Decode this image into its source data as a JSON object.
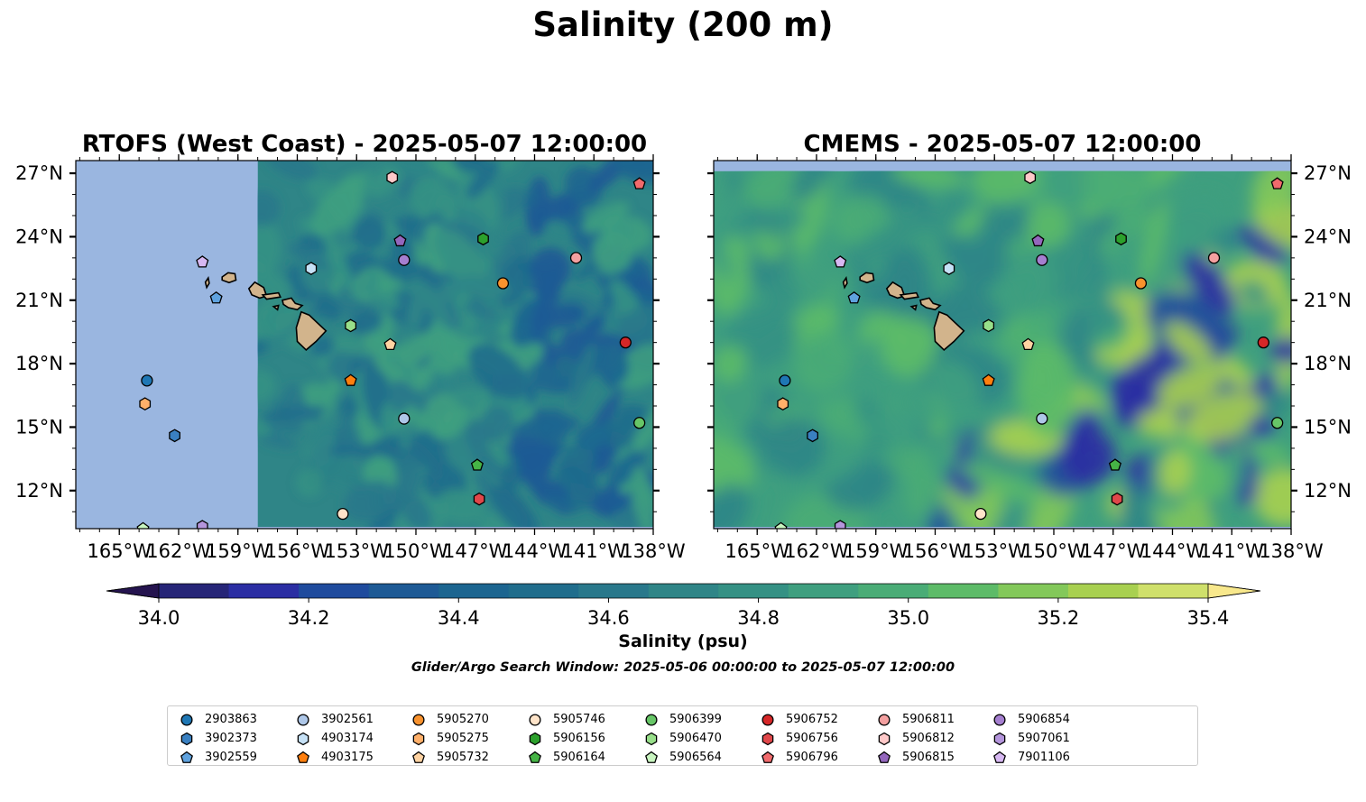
{
  "suptitle": "Salinity (200 m)",
  "colorbar": {
    "label": "Salinity (psu)",
    "ticks": [
      "34.0",
      "34.2",
      "34.4",
      "34.6",
      "34.8",
      "35.0",
      "35.2",
      "35.4"
    ],
    "levels": [
      34.0,
      34.1,
      34.2,
      34.3,
      34.4,
      34.5,
      34.6,
      34.7,
      34.8,
      34.9,
      35.0,
      35.1,
      35.2,
      35.3,
      35.4
    ],
    "colors": [
      "#262577",
      "#2b2ea3",
      "#1f4b9d",
      "#1e5a95",
      "#1c6590",
      "#206d8c",
      "#29788b",
      "#2f8587",
      "#359184",
      "#3f9f7f",
      "#4aac76",
      "#5dbb68",
      "#83c85a",
      "#a8d050",
      "#cfe06b"
    ],
    "under_color": "#25144f",
    "over_color": "#f8e88c",
    "extend": "both"
  },
  "search_window": "Glider/Argo Search Window: 2025-05-06 00:00:00 to 2025-05-07 12:00:00",
  "chart_data": [
    {
      "type": "map",
      "title": "RTOFS (West Coast) - 2025-05-07 12:00:00",
      "x_ticks": [
        "165°W",
        "162°W",
        "159°W",
        "156°W",
        "153°W",
        "150°W",
        "147°W",
        "144°W",
        "141°W",
        "138°W"
      ],
      "y_ticks": [
        "27°N",
        "24°N",
        "21°N",
        "18°N",
        "15°N",
        "12°N"
      ],
      "xlim": [
        -167.2,
        -138
      ],
      "ylim": [
        10.2,
        27.6
      ],
      "model_domain_west_edge": -158.0,
      "land_color": "#d2b48c",
      "ocean_no_data_color": "#9ab6e0",
      "field_colors": [
        "#2f8587",
        "#29788b",
        "#359184",
        "#206d8c",
        "#3f9f7f",
        "#1c6590",
        "#1e5a95",
        "#4aac76"
      ]
    },
    {
      "type": "map",
      "title": "CMEMS - 2025-05-07 12:00:00",
      "x_ticks": [
        "165°W",
        "162°W",
        "159°W",
        "156°W",
        "153°W",
        "150°W",
        "147°W",
        "144°W",
        "141°W",
        "138°W"
      ],
      "y_ticks": [
        "27°N",
        "24°N",
        "21°N",
        "18°N",
        "15°N",
        "12°N"
      ],
      "xlim": [
        -167.2,
        -138
      ],
      "ylim": [
        10.2,
        27.6
      ],
      "model_domain_north_edge": 27.1,
      "land_color": "#d2b48c",
      "ocean_no_data_color": "#9ab6e0",
      "field_colors": [
        "#3f9f7f",
        "#4aac76",
        "#359184",
        "#5dbb68",
        "#2f8587",
        "#206d8c",
        "#1e5a95",
        "#83c85a",
        "#1f4b9d",
        "#a8d050",
        "#2b2ea3"
      ]
    }
  ],
  "islands": [
    {
      "name": "Niihau-Kauai",
      "lon": -159.5,
      "lat": 22.05
    },
    {
      "name": "Oahu",
      "lon": -157.95,
      "lat": 21.45
    },
    {
      "name": "Molokai-Maui",
      "lon": -156.65,
      "lat": 20.9
    },
    {
      "name": "Hawaii",
      "lon": -155.5,
      "lat": 19.6
    }
  ],
  "floats": [
    {
      "id": "2903863",
      "marker": "circle",
      "color": "#1f77b4",
      "lon": -163.6,
      "lat": 17.2
    },
    {
      "id": "3902373",
      "marker": "hexagon",
      "color": "#3a80c1",
      "lon": -162.2,
      "lat": 14.6
    },
    {
      "id": "3902559",
      "marker": "pentagon",
      "color": "#5fa2de",
      "lon": -160.1,
      "lat": 21.1
    },
    {
      "id": "3902561",
      "marker": "circle",
      "color": "#aec7e8",
      "lon": -150.6,
      "lat": 15.4
    },
    {
      "id": "4903174",
      "marker": "hexagon",
      "color": "#c6e1f6",
      "lon": -155.3,
      "lat": 22.5
    },
    {
      "id": "4903175",
      "marker": "pentagon",
      "color": "#ff7f0e",
      "lon": -153.3,
      "lat": 17.2
    },
    {
      "id": "5905270",
      "marker": "circle",
      "color": "#f8922e",
      "lon": -145.6,
      "lat": 21.8
    },
    {
      "id": "5905275",
      "marker": "hexagon",
      "color": "#ffb06a",
      "lon": -163.7,
      "lat": 16.1
    },
    {
      "id": "5905732",
      "marker": "pentagon",
      "color": "#ffd3a2",
      "lon": -151.3,
      "lat": 18.9
    },
    {
      "id": "5905746",
      "marker": "circle",
      "color": "#ffe4c9",
      "lon": -153.7,
      "lat": 10.9
    },
    {
      "id": "5906156",
      "marker": "hexagon",
      "color": "#2ca02c",
      "lon": -146.6,
      "lat": 23.9
    },
    {
      "id": "5906164",
      "marker": "pentagon",
      "color": "#46b446",
      "lon": -146.9,
      "lat": 13.2
    },
    {
      "id": "5906399",
      "marker": "circle",
      "color": "#67c667",
      "lon": -138.7,
      "lat": 15.2
    },
    {
      "id": "5906470",
      "marker": "hexagon",
      "color": "#98df8a",
      "lon": -153.3,
      "lat": 19.8
    },
    {
      "id": "5906564",
      "marker": "pentagon",
      "color": "#c9f5c0",
      "lon": -163.8,
      "lat": 10.2
    },
    {
      "id": "5906752",
      "marker": "circle",
      "color": "#d62728",
      "lon": -139.4,
      "lat": 19.0
    },
    {
      "id": "5906756",
      "marker": "hexagon",
      "color": "#e0474a",
      "lon": -146.8,
      "lat": 11.6
    },
    {
      "id": "5906796",
      "marker": "pentagon",
      "color": "#f06a6c",
      "lon": -138.7,
      "lat": 26.5
    },
    {
      "id": "5906811",
      "marker": "circle",
      "color": "#f4a0a0",
      "lon": -141.9,
      "lat": 23.0
    },
    {
      "id": "5906812",
      "marker": "hexagon",
      "color": "#ffc9c9",
      "lon": -151.2,
      "lat": 26.8
    },
    {
      "id": "5906815",
      "marker": "pentagon",
      "color": "#9467bd",
      "lon": -150.8,
      "lat": 23.8
    },
    {
      "id": "5906854",
      "marker": "circle",
      "color": "#a57fd0",
      "lon": -150.6,
      "lat": 22.9
    },
    {
      "id": "5907061",
      "marker": "hexagon",
      "color": "#b495dc",
      "lon": -160.8,
      "lat": 10.3
    },
    {
      "id": "7901106",
      "marker": "pentagon",
      "color": "#d7b8f2",
      "lon": -160.8,
      "lat": 22.8
    }
  ],
  "icons": {
    "marker_shapes": [
      "circle-icon",
      "hexagon-icon",
      "pentagon-icon"
    ]
  }
}
